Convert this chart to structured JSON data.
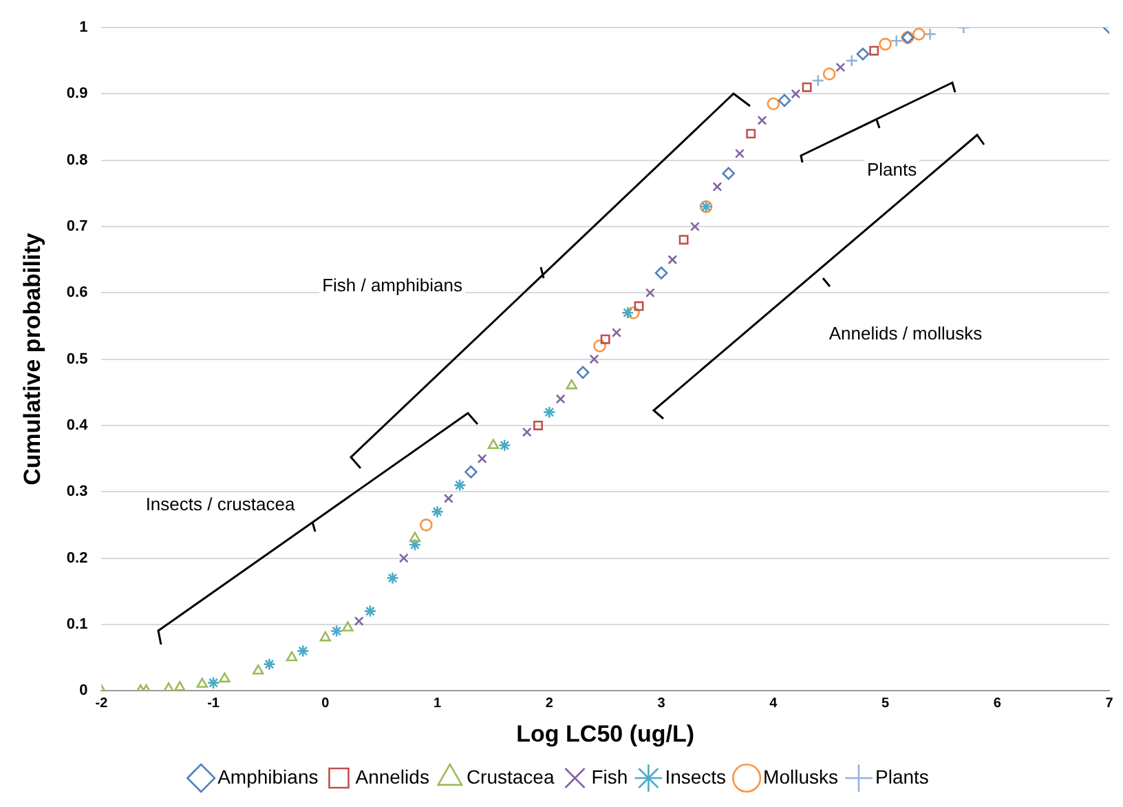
{
  "chart_data": {
    "type": "scatter",
    "xlabel": "Log LC50 (ug/L)",
    "ylabel": "Cumulative probability",
    "xlim": [
      -2,
      7
    ],
    "xticks": [
      -2,
      -1,
      0,
      1,
      2,
      3,
      4,
      5,
      6,
      7
    ],
    "ylim": [
      0,
      1
    ],
    "yticks": [
      0,
      0.1,
      0.2,
      0.3,
      0.4,
      0.5,
      0.6,
      0.7,
      0.8,
      0.9,
      1
    ],
    "grid": "y",
    "legend": "bottom",
    "annotations": [
      "Insects / crustacea",
      "Fish / amphibians",
      "Plants",
      "Annelids / mollusks"
    ],
    "series": [
      {
        "name": "Amphibians",
        "color": "#4f81bd",
        "marker": "diamond",
        "x": [
          1.3,
          2.3,
          3.0,
          3.6,
          4.1,
          4.8,
          5.2,
          7
        ],
        "values": [
          0.33,
          0.48,
          0.63,
          0.78,
          0.89,
          0.96,
          0.985,
          1.0
        ]
      },
      {
        "name": "Annelids",
        "color": "#c0504d",
        "marker": "square",
        "x": [
          1.9,
          2.5,
          2.8,
          3.2,
          3.8,
          4.3,
          4.9
        ],
        "values": [
          0.4,
          0.53,
          0.58,
          0.68,
          0.84,
          0.91,
          0.965
        ]
      },
      {
        "name": "Crustacea",
        "color": "#9bbb59",
        "marker": "triangle",
        "x": [
          -2,
          -1.65,
          -1.6,
          -1.4,
          -1.3,
          -1.1,
          -0.9,
          -0.6,
          -0.3,
          0,
          0.2,
          0.8,
          1.5,
          2.2
        ],
        "values": [
          0,
          0,
          0,
          0.003,
          0.005,
          0.01,
          0.018,
          0.03,
          0.05,
          0.08,
          0.095,
          0.23,
          0.37,
          0.46
        ]
      },
      {
        "name": "Fish",
        "color": "#8064a2",
        "marker": "cross",
        "x": [
          0.3,
          0.7,
          1.1,
          1.4,
          1.8,
          2.1,
          2.4,
          2.6,
          2.9,
          3.1,
          3.3,
          3.5,
          3.7,
          3.9,
          4.2,
          4.6
        ],
        "values": [
          0.105,
          0.2,
          0.29,
          0.35,
          0.39,
          0.44,
          0.5,
          0.54,
          0.6,
          0.65,
          0.7,
          0.76,
          0.81,
          0.86,
          0.9,
          0.94
        ]
      },
      {
        "name": "Insects",
        "color": "#4bacc6",
        "x": [
          -1,
          -0.5,
          -0.2,
          0.1,
          0.4,
          0.6,
          0.8,
          1.0,
          1.2,
          1.6,
          2.0,
          2.7,
          3.4
        ],
        "values": [
          0.012,
          0.04,
          0.06,
          0.09,
          0.12,
          0.17,
          0.22,
          0.27,
          0.31,
          0.37,
          0.42,
          0.57,
          0.73
        ]
      },
      {
        "name": "Mollusks",
        "color": "#f79646",
        "marker": "circle",
        "x": [
          0.9,
          2.45,
          2.75,
          3.4,
          4.0,
          4.5,
          5.0,
          5.2,
          5.3
        ],
        "values": [
          0.25,
          0.52,
          0.57,
          0.73,
          0.885,
          0.93,
          0.975,
          0.985,
          0.99
        ]
      },
      {
        "name": "Plants",
        "color": "#95b3d7",
        "marker": "cross",
        "x": [
          4.4,
          4.7,
          5.1,
          5.4,
          5.7
        ],
        "values": [
          0.92,
          0.95,
          0.98,
          0.99,
          1.0
        ]
      }
    ]
  }
}
